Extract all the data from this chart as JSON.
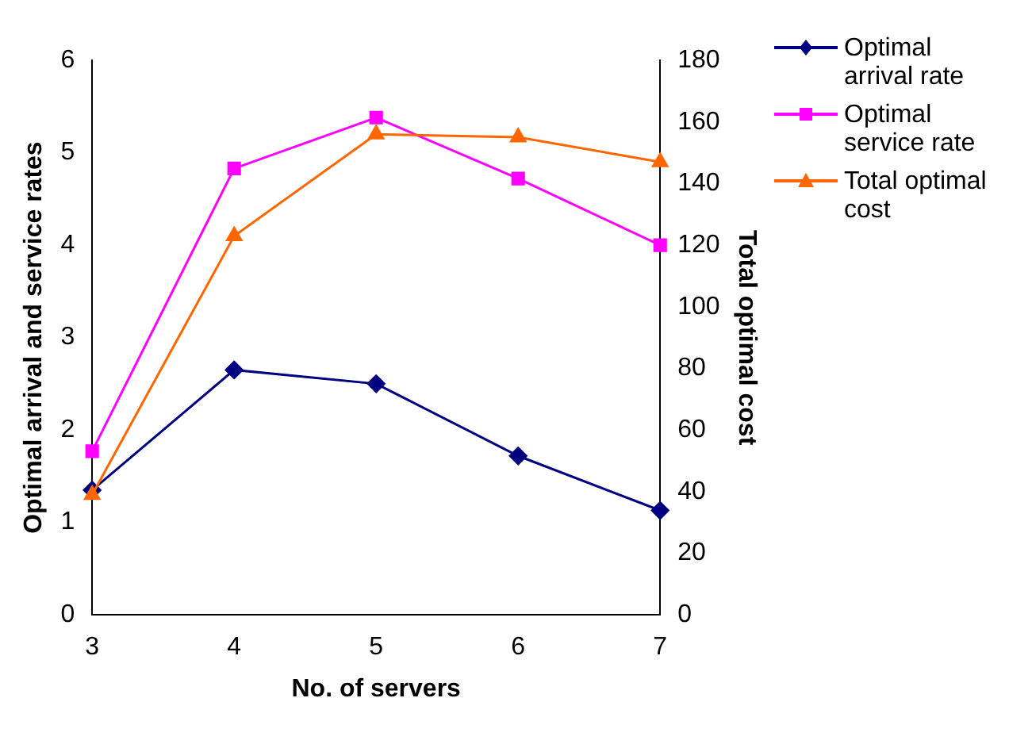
{
  "chart_data": {
    "type": "line",
    "xlabel": "No. of servers",
    "ylabel": "Optimal arrival and service rates",
    "y2label": "Total optimal cost",
    "categories": [
      "3",
      "4",
      "5",
      "6",
      "7"
    ],
    "series": [
      {
        "name": "Optimal arrival rate",
        "color": "#000080",
        "marker": "diamond",
        "values": [
          1.35,
          2.65,
          2.5,
          1.72,
          1.13
        ]
      },
      {
        "name": "Optimal service rate",
        "color": "#ff00ff",
        "marker": "square",
        "values": [
          1.77,
          4.83,
          5.38,
          4.72,
          4.0
        ]
      },
      {
        "name": "Total optimal cost",
        "color": "#ff6600",
        "marker": "triangle",
        "axis": "y2",
        "values": [
          39,
          123,
          156,
          155,
          147
        ]
      }
    ],
    "ylim": [
      0,
      6
    ],
    "yticks": [
      0,
      1,
      2,
      3,
      4,
      5,
      6
    ],
    "y2lim": [
      0,
      180
    ],
    "y2ticks": [
      0,
      20,
      40,
      60,
      80,
      100,
      120,
      140,
      160,
      180
    ],
    "grid": false,
    "legend": "top right"
  }
}
